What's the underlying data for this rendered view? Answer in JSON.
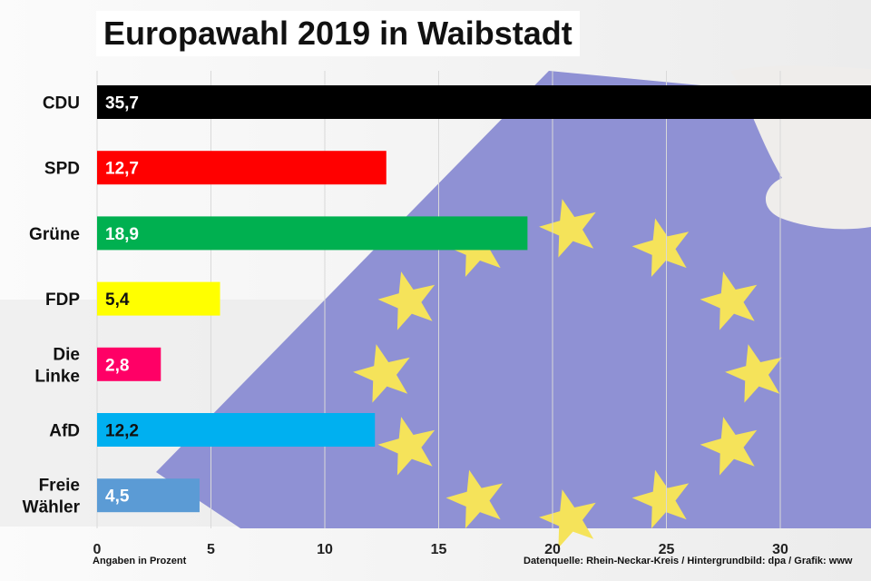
{
  "title": "Europawahl 2019 in Waibstadt",
  "footnotes": {
    "unit_note": "Angaben in Prozent",
    "source": "Datenquelle: Rhein-Neckar-Kreis / Hintergrundbild: dpa / Grafik: www"
  },
  "colors": {
    "flag_blue": "#8f91d4",
    "stars": "#f5e35a",
    "grid": "#d9d9d9"
  },
  "chart_data": {
    "type": "bar",
    "orientation": "horizontal",
    "title": "Europawahl 2019 in Waibstadt",
    "xlabel": "Angaben in Prozent",
    "xlim": [
      0,
      35
    ],
    "xticks": [
      0,
      5,
      10,
      15,
      20,
      25,
      30
    ],
    "grid": true,
    "categories": [
      {
        "lines": [
          "CDU"
        ]
      },
      {
        "lines": [
          "SPD"
        ]
      },
      {
        "lines": [
          "Grüne"
        ]
      },
      {
        "lines": [
          "FDP"
        ]
      },
      {
        "lines": [
          "Die",
          "Linke"
        ]
      },
      {
        "lines": [
          "AfD"
        ]
      },
      {
        "lines": [
          "Freie",
          "Wähler"
        ]
      }
    ],
    "values": [
      35.7,
      12.7,
      18.9,
      5.4,
      2.8,
      12.2,
      4.5
    ],
    "value_labels": [
      "35,7",
      "12,7",
      "18,9",
      "5,4",
      "2,8",
      "12,2",
      "4,5"
    ],
    "bar_colors": [
      "#000000",
      "#ff0000",
      "#00b050",
      "#ffff00",
      "#ff0066",
      "#00b0f0",
      "#5b9bd5"
    ],
    "label_colors": [
      "#ffffff",
      "#ffffff",
      "#ffffff",
      "#111111",
      "#ffffff",
      "#111111",
      "#ffffff"
    ]
  }
}
